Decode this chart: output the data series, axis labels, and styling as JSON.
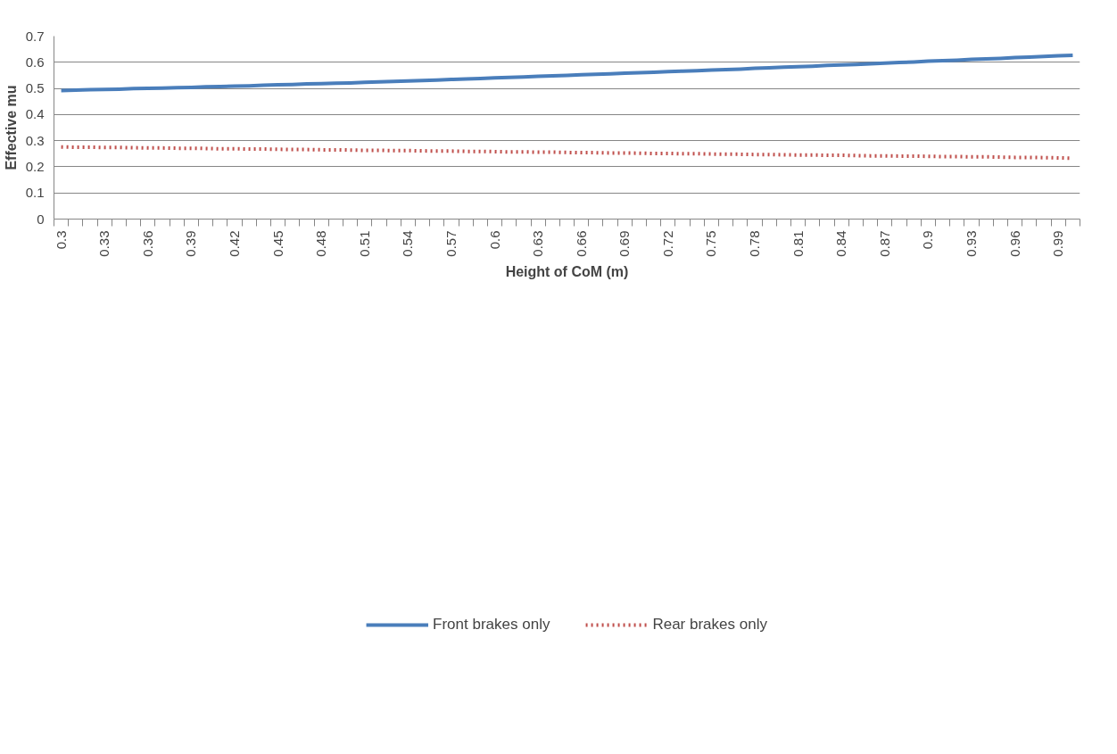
{
  "chart_data": {
    "type": "line",
    "xlabel": "Height of CoM (m)",
    "ylabel": "Effective mu",
    "categories": [
      "0.3",
      null,
      null,
      "0.33",
      null,
      null,
      "0.36",
      null,
      null,
      "0.39",
      null,
      null,
      "0.42",
      null,
      null,
      "0.45",
      null,
      null,
      "0.48",
      null,
      null,
      "0.51",
      null,
      null,
      "0.54",
      null,
      null,
      "0.57",
      null,
      null,
      "0.6",
      null,
      null,
      "0.63",
      null,
      null,
      "0.66",
      null,
      null,
      "0.69",
      null,
      null,
      "0.72",
      null,
      null,
      "0.75",
      null,
      null,
      "0.78",
      null,
      null,
      "0.81",
      null,
      null,
      "0.84",
      null,
      null,
      "0.87",
      null,
      null,
      "0.9",
      null,
      null,
      "0.93",
      null,
      null,
      "0.96",
      null,
      null,
      "0.99",
      null
    ],
    "series": [
      {
        "name": "Front brakes only",
        "color": "#4a7ebb",
        "line_style": "solid",
        "values": [
          0.492,
          0.493,
          0.495,
          0.496,
          0.497,
          0.499,
          0.5,
          0.501,
          0.503,
          0.504,
          0.506,
          0.507,
          0.509,
          0.51,
          0.512,
          0.514,
          0.515,
          0.517,
          0.518,
          0.52,
          0.521,
          0.523,
          0.525,
          0.527,
          0.528,
          0.53,
          0.532,
          0.534,
          0.536,
          0.538,
          0.54,
          0.542,
          0.544,
          0.546,
          0.548,
          0.55,
          0.552,
          0.554,
          0.556,
          0.558,
          0.56,
          0.562,
          0.564,
          0.566,
          0.568,
          0.57,
          0.572,
          0.574,
          0.577,
          0.579,
          0.581,
          0.583,
          0.585,
          0.588,
          0.59,
          0.592,
          0.594,
          0.597,
          0.599,
          0.601,
          0.604,
          0.606,
          0.608,
          0.611,
          0.613,
          0.615,
          0.618,
          0.62,
          0.622,
          0.625,
          0.627
        ]
      },
      {
        "name": "Rear brakes only",
        "color": "#c0504d",
        "line_style": "dotted",
        "values": [
          0.276,
          0.275,
          0.275,
          0.274,
          0.274,
          0.273,
          0.272,
          0.272,
          0.271,
          0.271,
          0.27,
          0.269,
          0.269,
          0.268,
          0.268,
          0.267,
          0.266,
          0.266,
          0.265,
          0.265,
          0.264,
          0.263,
          0.263,
          0.262,
          0.262,
          0.261,
          0.26,
          0.26,
          0.259,
          0.259,
          0.258,
          0.257,
          0.257,
          0.256,
          0.256,
          0.255,
          0.254,
          0.254,
          0.253,
          0.253,
          0.252,
          0.251,
          0.251,
          0.25,
          0.25,
          0.249,
          0.248,
          0.248,
          0.247,
          0.247,
          0.246,
          0.245,
          0.245,
          0.244,
          0.244,
          0.243,
          0.242,
          0.242,
          0.241,
          0.241,
          0.24,
          0.239,
          0.239,
          0.238,
          0.238,
          0.237,
          0.236,
          0.236,
          0.235,
          0.234,
          0.233
        ]
      }
    ],
    "ylim": [
      0,
      0.7
    ],
    "yticks": [
      0,
      0.1,
      0.2,
      0.3,
      0.4,
      0.5,
      0.6,
      0.7
    ],
    "grid": "y",
    "legend": "bottom"
  }
}
